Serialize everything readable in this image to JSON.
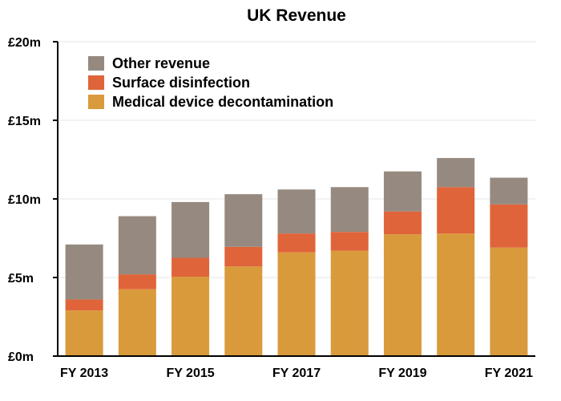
{
  "chart_data": {
    "type": "bar",
    "stacked": true,
    "title": "UK Revenue",
    "xlabel": "",
    "ylabel": "",
    "categories": [
      "FY 2013",
      "FY 2014",
      "FY 2015",
      "FY 2016",
      "FY 2017",
      "FY 2018",
      "FY 2019",
      "FY 2020",
      "FY 2021"
    ],
    "x_tick_labels": [
      "FY 2013",
      "",
      "FY 2015",
      "",
      "FY 2017",
      "",
      "FY 2019",
      "",
      "FY 2021"
    ],
    "y_ticks": [
      0,
      5,
      10,
      15,
      20
    ],
    "y_tick_labels": [
      "£0m",
      "£5m",
      "£10m",
      "£15m",
      "£20m"
    ],
    "ylim": [
      0,
      20
    ],
    "grid": true,
    "legend_position": "top-left",
    "series": [
      {
        "name": "Medical device decontamination",
        "color": "#D99A3C",
        "values": [
          2.9,
          4.25,
          5.05,
          5.7,
          6.6,
          6.7,
          7.75,
          7.8,
          6.9
        ]
      },
      {
        "name": "Surface disinfection",
        "color": "#E0643A",
        "values": [
          0.7,
          0.95,
          1.2,
          1.25,
          1.2,
          1.2,
          1.45,
          2.95,
          2.75
        ]
      },
      {
        "name": "Other revenue",
        "color": "#968A80",
        "values": [
          3.5,
          3.7,
          3.55,
          3.35,
          2.8,
          2.85,
          2.55,
          1.85,
          1.7
        ]
      }
    ],
    "legend_order": [
      "Other revenue",
      "Surface disinfection",
      "Medical device decontamination"
    ]
  }
}
